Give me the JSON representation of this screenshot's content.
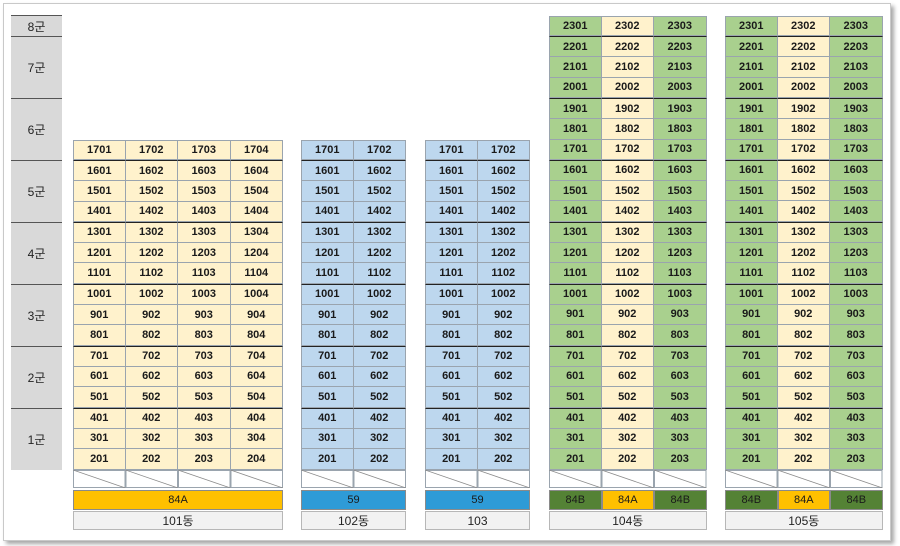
{
  "groups": [
    {
      "label": "8군",
      "top": 15,
      "h": 21
    },
    {
      "label": "7군",
      "top": 36,
      "h": 62
    },
    {
      "label": "6군",
      "top": 98,
      "h": 62
    },
    {
      "label": "5군",
      "top": 160,
      "h": 62
    },
    {
      "label": "4군",
      "top": 222,
      "h": 62
    },
    {
      "label": "3군",
      "top": 284,
      "h": 62
    },
    {
      "label": "2군",
      "top": 346,
      "h": 62
    },
    {
      "label": "1군",
      "top": 408,
      "h": 62
    }
  ],
  "colors": {
    "cream": "#fff2cc",
    "blue": "#bdd7ee",
    "green": "#a9d08e",
    "type_84A": "#ffc000",
    "type_59": "#2e9bd7",
    "type_84B": "#548235"
  },
  "buildings": [
    {
      "id": "101",
      "label": "101동",
      "left": 73,
      "cols": 4,
      "colw": 52.5,
      "floors": 17,
      "fills": [
        "cream",
        "cream",
        "cream",
        "cream"
      ],
      "units": [
        "01",
        "02",
        "03",
        "04"
      ],
      "types": [
        {
          "label": "84A",
          "span": 4,
          "color": "type_84A"
        }
      ]
    },
    {
      "id": "102",
      "label": "102동",
      "left": 301,
      "cols": 2,
      "colw": 52.5,
      "floors": 17,
      "fills": [
        "blue",
        "blue"
      ],
      "units": [
        "01",
        "02"
      ],
      "types": [
        {
          "label": "59",
          "span": 2,
          "color": "type_59"
        }
      ]
    },
    {
      "id": "103",
      "label": "103",
      "left": 425,
      "cols": 2,
      "colw": 52.5,
      "floors": 17,
      "fills": [
        "blue",
        "blue"
      ],
      "units": [
        "01",
        "02"
      ],
      "types": [
        {
          "label": "59",
          "span": 2,
          "color": "type_59"
        }
      ]
    },
    {
      "id": "104",
      "label": "104동",
      "left": 549,
      "cols": 3,
      "colw": 52.5,
      "floors": 23,
      "fills": [
        "green",
        "cream",
        "green"
      ],
      "units": [
        "01",
        "02",
        "03"
      ],
      "types": [
        {
          "label": "84B",
          "span": 1,
          "color": "type_84B"
        },
        {
          "label": "84A",
          "span": 1,
          "color": "type_84A"
        },
        {
          "label": "84B",
          "span": 1,
          "color": "type_84B"
        }
      ]
    },
    {
      "id": "105",
      "label": "105동",
      "left": 725,
      "cols": 3,
      "colw": 52.5,
      "floors": 23,
      "fills": [
        "green",
        "cream",
        "green"
      ],
      "units": [
        "01",
        "02",
        "03"
      ],
      "types": [
        {
          "label": "84B",
          "span": 1,
          "color": "type_84B"
        },
        {
          "label": "84A",
          "span": 1,
          "color": "type_84A"
        },
        {
          "label": "84B",
          "span": 1,
          "color": "type_84B"
        }
      ]
    }
  ]
}
